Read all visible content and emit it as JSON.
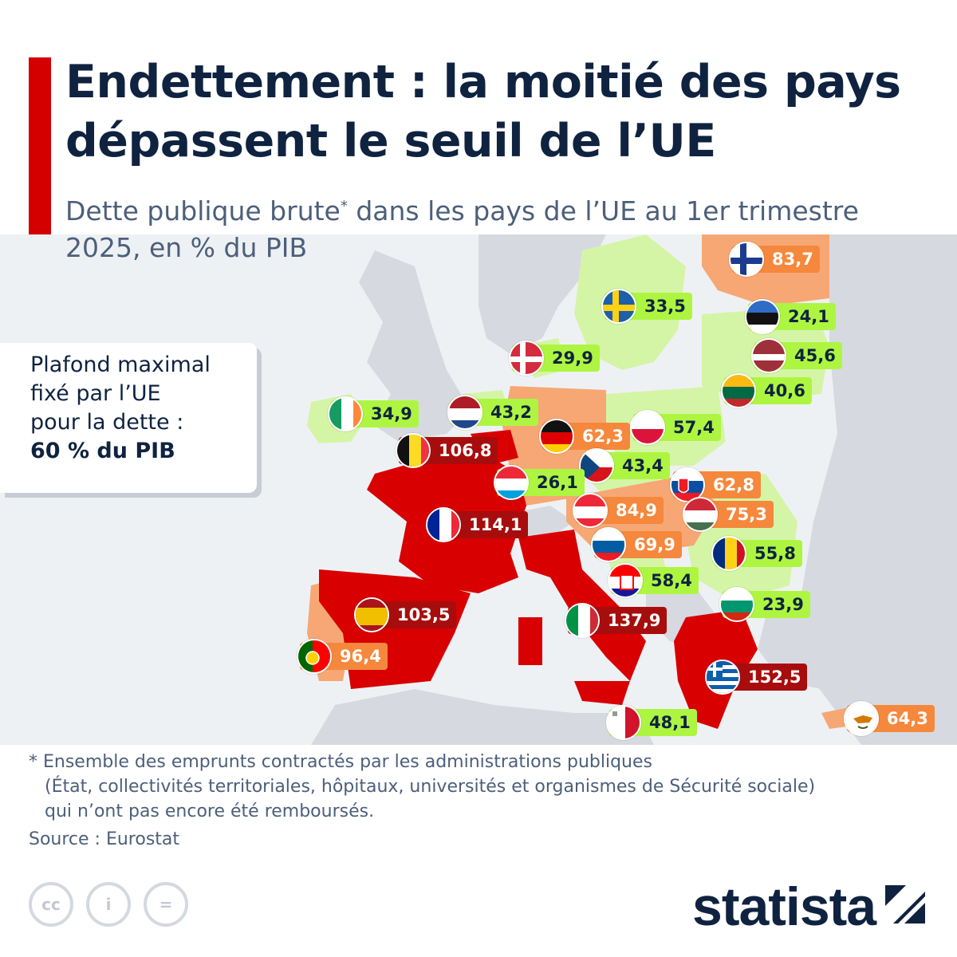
{
  "title": "Endettement : la moitié des pays dépassent le seuil de l’UE",
  "subtitle": "Dette publique brute",
  "subtitle_marker": "*",
  "subtitle_rest": " dans les pays de l’UE au 1er trimestre 2025, en % du PIB",
  "ceiling": {
    "line1": "Plafond maximal",
    "line2": "fixé par l’UE",
    "line3": "pour la dette :",
    "line4": "60 % du PIB"
  },
  "colors": {
    "below_threshold": "#aef542",
    "above_threshold": "#f5883c",
    "above_100": "#a80d0d",
    "map_green": "#d4f5a6",
    "map_orange": "#f7a774",
    "map_red": "#d80000",
    "land_other": "#d6dae0",
    "sea": "#eef1f4"
  },
  "countries": [
    {
      "code": "FI",
      "value": "83,7",
      "level": "orange",
      "flag": "finland-flag-icon"
    },
    {
      "code": "SE",
      "value": "33,5",
      "level": "green",
      "flag": "sweden-flag-icon"
    },
    {
      "code": "EE",
      "value": "24,1",
      "level": "green",
      "flag": "estonia-flag-icon"
    },
    {
      "code": "DK",
      "value": "29,9",
      "level": "green",
      "flag": "denmark-flag-icon"
    },
    {
      "code": "LV",
      "value": "45,6",
      "level": "green",
      "flag": "latvia-flag-icon"
    },
    {
      "code": "LT",
      "value": "40,6",
      "level": "green",
      "flag": "lithuania-flag-icon"
    },
    {
      "code": "IE",
      "value": "34,9",
      "level": "green",
      "flag": "ireland-flag-icon"
    },
    {
      "code": "NL",
      "value": "43,2",
      "level": "green",
      "flag": "netherlands-flag-icon"
    },
    {
      "code": "PL",
      "value": "57,4",
      "level": "green",
      "flag": "poland-flag-icon"
    },
    {
      "code": "DE",
      "value": "62,3",
      "level": "orange",
      "flag": "germany-flag-icon"
    },
    {
      "code": "BE",
      "value": "106,8",
      "level": "red",
      "flag": "belgium-flag-icon"
    },
    {
      "code": "CZ",
      "value": "43,4",
      "level": "green",
      "flag": "czechia-flag-icon"
    },
    {
      "code": "LU",
      "value": "26,1",
      "level": "green",
      "flag": "luxembourg-flag-icon"
    },
    {
      "code": "SK",
      "value": "62,8",
      "level": "orange",
      "flag": "slovakia-flag-icon"
    },
    {
      "code": "AT",
      "value": "84,9",
      "level": "orange",
      "flag": "austria-flag-icon"
    },
    {
      "code": "HU",
      "value": "75,3",
      "level": "orange",
      "flag": "hungary-flag-icon"
    },
    {
      "code": "FR",
      "value": "114,1",
      "level": "red",
      "flag": "france-flag-icon"
    },
    {
      "code": "SI",
      "value": "69,9",
      "level": "orange",
      "flag": "slovenia-flag-icon"
    },
    {
      "code": "RO",
      "value": "55,8",
      "level": "green",
      "flag": "romania-flag-icon"
    },
    {
      "code": "HR",
      "value": "58,4",
      "level": "green",
      "flag": "croatia-flag-icon"
    },
    {
      "code": "ES",
      "value": "103,5",
      "level": "red",
      "flag": "spain-flag-icon"
    },
    {
      "code": "BG",
      "value": "23,9",
      "level": "green",
      "flag": "bulgaria-flag-icon"
    },
    {
      "code": "IT",
      "value": "137,9",
      "level": "red",
      "flag": "italy-flag-icon"
    },
    {
      "code": "PT",
      "value": "96,4",
      "level": "orange",
      "flag": "portugal-flag-icon"
    },
    {
      "code": "GR",
      "value": "152,5",
      "level": "red",
      "flag": "greece-flag-icon"
    },
    {
      "code": "MT",
      "value": "48,1",
      "level": "green",
      "flag": "malta-flag-icon"
    },
    {
      "code": "CY",
      "value": "64,3",
      "level": "orange",
      "flag": "cyprus-flag-icon"
    }
  ],
  "footnote": {
    "line1": "* Ensemble des emprunts contractés par les administrations publiques",
    "line2": "(État, collectivités territoriales, hôpitaux, universités et organismes de Sécurité sociale)",
    "line3": "qui n’ont pas encore été remboursés."
  },
  "source": "Source : Eurostat",
  "license_icons": [
    "cc-icon",
    "attribution-icon",
    "no-derivatives-icon"
  ],
  "license_glyphs": {
    "cc": "cc",
    "by": "i",
    "nd": "="
  },
  "logo": "statista"
}
